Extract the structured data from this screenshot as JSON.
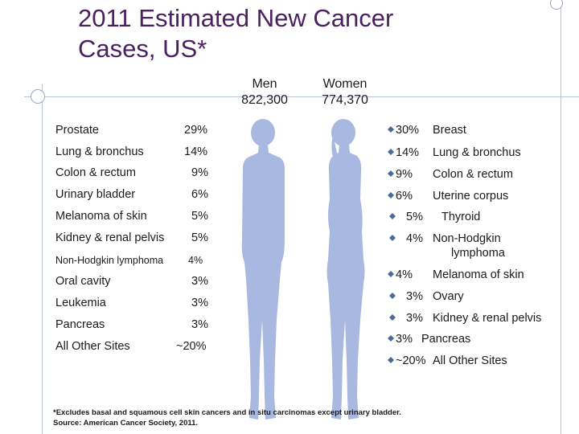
{
  "title_line1": "2011 Estimated New Cancer",
  "title_line2": "Cases, US*",
  "men": {
    "label": "Men",
    "total": "822,300"
  },
  "women": {
    "label": "Women",
    "total": "774,370"
  },
  "men_rows": [
    {
      "site": "Prostate",
      "pct": "29%"
    },
    {
      "site": "Lung & bronchus",
      "pct": "14%"
    },
    {
      "site": "Colon & rectum",
      "pct": "9%"
    },
    {
      "site": "Urinary bladder",
      "pct": "6%"
    },
    {
      "site": "Melanoma of skin",
      "pct": "5%"
    },
    {
      "site": "Kidney & renal pelvis",
      "pct": "5%"
    },
    {
      "site": "Non-Hodgkin lymphoma",
      "pct": "4%"
    },
    {
      "site": "Oral cavity",
      "pct": "3%"
    },
    {
      "site": "Leukemia",
      "pct": "3%"
    },
    {
      "site": "Pancreas",
      "pct": "3%"
    },
    {
      "site": "All Other Sites",
      "pct": "~20%"
    }
  ],
  "women_rows": [
    {
      "pct": "30%",
      "site": "Breast"
    },
    {
      "pct": "14%",
      "site": "Lung & bronchus"
    },
    {
      "pct": "9%",
      "site": "Colon & rectum"
    },
    {
      "pct": "6%",
      "site": "Uterine corpus"
    },
    {
      "pct": "5%",
      "site": "Thyroid"
    },
    {
      "pct": "4%",
      "site": "Non-Hodgkin",
      "site2": "lymphoma"
    },
    {
      "pct": "4%",
      "site": "Melanoma of skin"
    },
    {
      "pct": "3%",
      "site": "Ovary"
    },
    {
      "pct": "3%",
      "site": "Kidney & renal pelvis"
    },
    {
      "pct": "3%",
      "site": "Pancreas"
    },
    {
      "pct": "~20%",
      "site": "All Other Sites"
    }
  ],
  "footnote1": "*Excludes basal and squamous cell skin cancers and in situ carcinomas except urinary bladder.",
  "footnote2": "Source: American Cancer Society, 2011.",
  "colors": {
    "title": "#4a2060",
    "silhouette": "#a9b8e0",
    "accent_line": "#b9c4d6"
  }
}
